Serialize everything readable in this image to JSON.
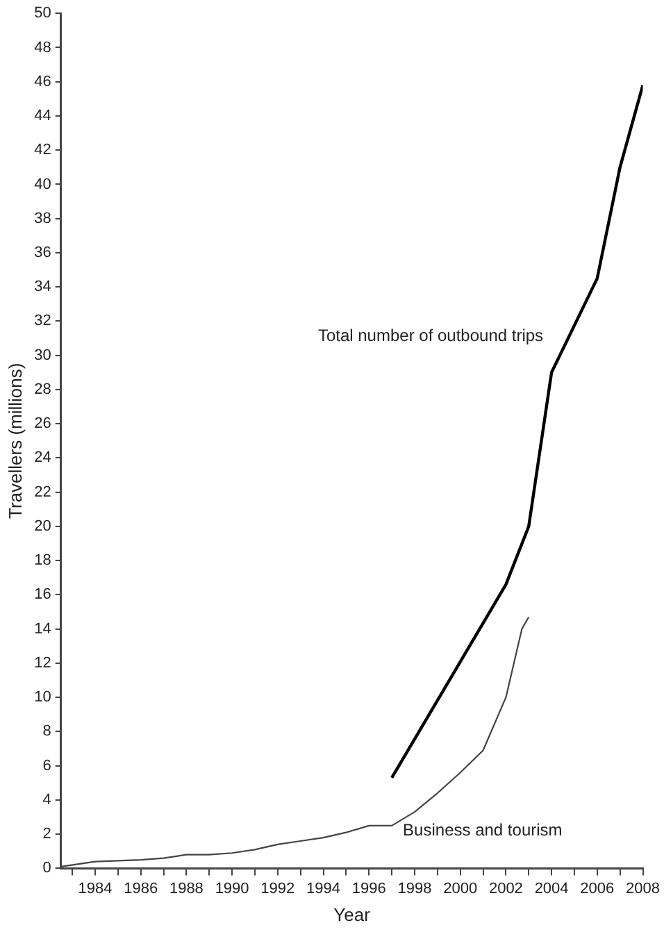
{
  "chart_data": {
    "type": "line",
    "xlabel": "Year",
    "ylabel": "Travellers (millions)",
    "xlim": [
      1982.5,
      2008
    ],
    "xticks": [
      {
        "value": 1983,
        "label": null
      },
      1984,
      {
        "value": 1985,
        "label": null
      },
      1986,
      {
        "value": 1987,
        "label": null
      },
      1988,
      {
        "value": 1989,
        "label": null
      },
      1990,
      {
        "value": 1991,
        "label": null
      },
      1992,
      {
        "value": 1993,
        "label": null
      },
      1994,
      {
        "value": 1995,
        "label": null
      },
      1996,
      {
        "value": 1997,
        "label": null
      },
      1998,
      {
        "value": 1999,
        "label": null
      },
      2000,
      {
        "value": 2001,
        "label": null
      },
      2002,
      {
        "value": 2003,
        "label": null
      },
      2004,
      {
        "value": 2005,
        "label": null
      },
      2006,
      {
        "value": 2007,
        "label": null
      },
      2008
    ],
    "ylim": [
      0,
      50
    ],
    "yticks": [
      0,
      2,
      4,
      6,
      8,
      10,
      12,
      14,
      16,
      18,
      20,
      22,
      24,
      26,
      28,
      30,
      32,
      34,
      36,
      38,
      40,
      42,
      44,
      46,
      48,
      50
    ],
    "grid": false,
    "legend": false,
    "marker": "none",
    "line_style": "solid",
    "series": [
      {
        "name": "Total number of outbound trips",
        "color": "#000000",
        "x": [
          1997,
          2002,
          2003,
          2004,
          2006,
          2007,
          2008
        ],
        "values": [
          5.3,
          16.6,
          20,
          29,
          34.5,
          41,
          45.8
        ]
      },
      {
        "name": "Business and tourism",
        "color": "#444444",
        "x": [
          1982.5,
          1984,
          1986,
          1987,
          1988,
          1989,
          1990,
          1991,
          1992,
          1993,
          1994,
          1995,
          1996,
          1997,
          1998,
          1999,
          2000,
          2001,
          2002,
          2002.7,
          2003
        ],
        "values": [
          0.1,
          0.4,
          0.5,
          0.6,
          0.8,
          0.8,
          0.9,
          1.1,
          1.4,
          1.6,
          1.8,
          2.1,
          2.5,
          2.5,
          3.3,
          4.4,
          5.6,
          6.9,
          10,
          14,
          14.7
        ]
      }
    ]
  }
}
